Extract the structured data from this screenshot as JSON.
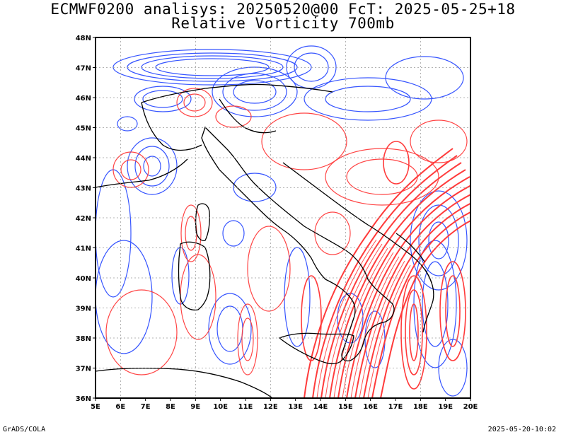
{
  "header": {
    "line1": "ECMWF0200 analisys: 20250520@00 FcT: 2025-05-25+18",
    "line2": "Relative Vorticity 700mb"
  },
  "footer": {
    "left": "GrADS/COLA",
    "right": "2025-05-20-10:02"
  },
  "map": {
    "region": "Italy",
    "lon_range": [
      5,
      20
    ],
    "lat_range": [
      36,
      48
    ],
    "x_ticks": [
      "5E",
      "6E",
      "7E",
      "8E",
      "9E",
      "10E",
      "11E",
      "12E",
      "13E",
      "14E",
      "15E",
      "16E",
      "17E",
      "18E",
      "19E",
      "20E"
    ],
    "y_ticks": [
      "36N",
      "37N",
      "38N",
      "39N",
      "40N",
      "41N",
      "42N",
      "43N",
      "44N",
      "45N",
      "46N",
      "47N",
      "48N"
    ],
    "grid": true,
    "colors": {
      "positive_contour": "#ff3b3b",
      "negative_contour": "#2b4bff",
      "coastline": "#000000",
      "grid": "#9a9a9a"
    }
  }
}
